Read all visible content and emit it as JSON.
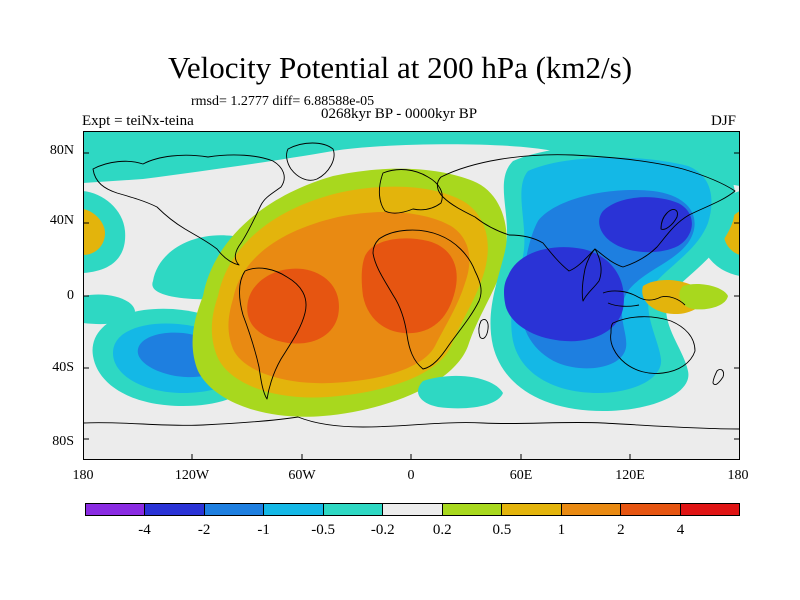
{
  "title": "Velocity Potential at 200 hPa (km2/s)",
  "stats": "rmsd= 1.2777 diff= 6.88588e-05",
  "experiment": "Expt = teiNx-teina",
  "period": "0268kyr BP - 0000kyr BP",
  "season": "DJF",
  "map": {
    "lat_labels": [
      "80N",
      "40N",
      "0",
      "40S",
      "80S"
    ],
    "lon_labels": [
      "180",
      "120W",
      "60W",
      "0",
      "60E",
      "120E",
      "180"
    ]
  },
  "colorbar": {
    "colors": [
      "#8a2be2",
      "#2a33d6",
      "#1e7fe0",
      "#14b8e6",
      "#2ed8c3",
      "#ececec",
      "#a8d81e",
      "#e3b40c",
      "#e98a12",
      "#e65511",
      "#e01414"
    ],
    "labels": [
      "-4",
      "-2",
      "-1",
      "-0.5",
      "-0.2",
      "0.2",
      "0.5",
      "1",
      "2",
      "4"
    ]
  },
  "palette": {
    "neutral": "#ececec",
    "cyan": "#2ed8c3",
    "lightblue": "#14b8e6",
    "blue": "#1e7fe0",
    "deepblue": "#2a33d6",
    "lime": "#a8d81e",
    "yellow": "#e3b40c",
    "orange": "#e98a12",
    "redorange": "#e65511"
  }
}
